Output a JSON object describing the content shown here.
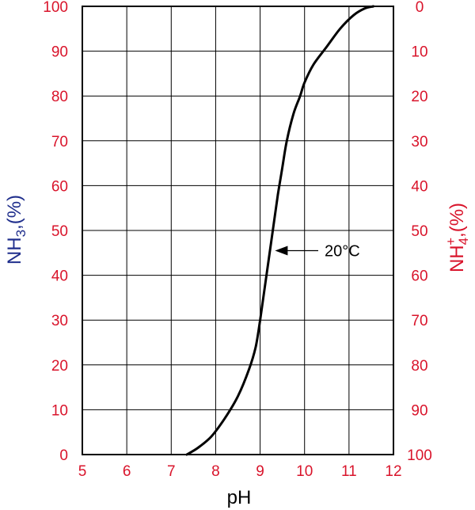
{
  "chart_data": {
    "type": "line",
    "title": "",
    "xlabel": "pH",
    "ylabel_left_main": "NH",
    "ylabel_left_sub": "3",
    "ylabel_left_rest": ",(%)",
    "ylabel_right_main": "NH",
    "ylabel_right_sub": "4",
    "ylabel_right_sup": "+",
    "ylabel_right_rest": ",(%)",
    "xlim": [
      5,
      12
    ],
    "ylim": [
      0,
      100
    ],
    "x_ticks": [
      "5",
      "6",
      "7",
      "8",
      "9",
      "10",
      "11",
      "12"
    ],
    "y_ticks_left": [
      "0",
      "10",
      "20",
      "30",
      "40",
      "50",
      "60",
      "70",
      "80",
      "90",
      "100"
    ],
    "y_ticks_right": [
      "100",
      "90",
      "80",
      "70",
      "60",
      "50",
      "40",
      "30",
      "20",
      "10",
      "0"
    ],
    "grid": true,
    "series": [
      {
        "name": "",
        "x": [
          7.35,
          7.6,
          7.9,
          8.2,
          8.5,
          8.75,
          8.9,
          9.0,
          9.1,
          9.2,
          9.3,
          9.4,
          9.5,
          9.6,
          9.75,
          9.9,
          10.0,
          10.2,
          10.5,
          10.8,
          11.1,
          11.35,
          11.55
        ],
        "y": [
          0,
          1.5,
          4,
          8,
          13,
          19,
          24,
          30,
          37,
          44,
          51,
          58,
          64,
          70,
          76,
          80,
          83,
          87,
          91,
          95,
          98,
          99.5,
          100
        ]
      }
    ],
    "annotation": {
      "text": "20°C",
      "x": 9.3,
      "y": 45.5
    },
    "colors": {
      "tick_labels": "#d9142b",
      "left_axis_title": "#1f2e8c",
      "right_axis_title": "#d9142b",
      "x_axis_title": "#000000",
      "curve": "#000000",
      "grid": "#000000"
    }
  }
}
